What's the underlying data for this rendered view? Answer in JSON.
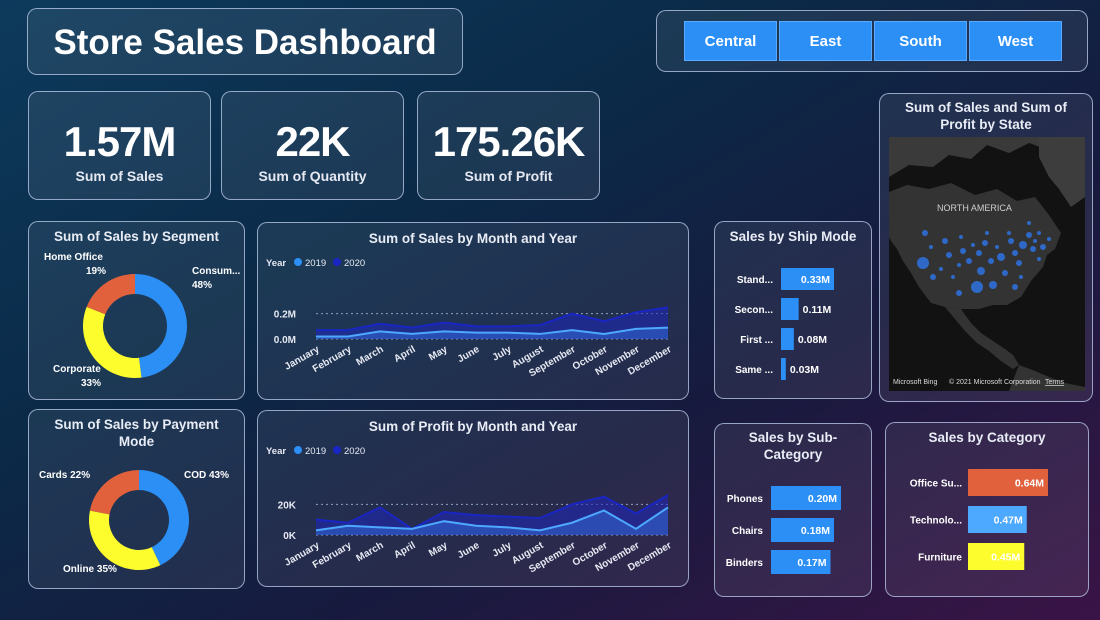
{
  "title": "Store Sales Dashboard",
  "regions": [
    "Central",
    "East",
    "South",
    "West"
  ],
  "kpis": [
    {
      "value": "1.57M",
      "label": "Sum of Sales"
    },
    {
      "value": "22K",
      "label": "Sum of Quantity"
    },
    {
      "value": "175.26K",
      "label": "Sum of Profit"
    }
  ],
  "colors": {
    "orange": "#e0613c",
    "blue": "#2b8ff5",
    "yellow": "#fdfd2e",
    "light_blue": "#4da8ff",
    "dark_blue": "#1a26c4"
  },
  "map": {
    "title": "Sum of Sales and Sum of Profit by State",
    "label": "NORTH AMERICA",
    "attribution": "Microsoft Bing",
    "copyright": "© 2021 Microsoft Corporation",
    "terms": "Terms"
  },
  "chart_data": [
    {
      "type": "pie",
      "title": "Sum of Sales by Segment",
      "categories": [
        "Consum...",
        "Corporate",
        "Home Office"
      ],
      "values": [
        48,
        33,
        19
      ],
      "labels": [
        "48%",
        "33%",
        "19%"
      ]
    },
    {
      "type": "pie",
      "title": "Sum of Sales by Payment Mode",
      "categories": [
        "COD",
        "Online",
        "Cards"
      ],
      "values": [
        43,
        35,
        22
      ],
      "labels": [
        "COD 43%",
        "Online 35%",
        "Cards 22%"
      ]
    },
    {
      "type": "area",
      "title": "Sum of Sales by Month and Year",
      "legend_title": "Year",
      "categories": [
        "January",
        "February",
        "March",
        "April",
        "May",
        "June",
        "July",
        "August",
        "September",
        "October",
        "November",
        "December"
      ],
      "series": [
        {
          "name": "2019",
          "values": [
            0.02,
            0.02,
            0.06,
            0.04,
            0.06,
            0.05,
            0.05,
            0.04,
            0.07,
            0.04,
            0.08,
            0.09
          ]
        },
        {
          "name": "2020",
          "values": [
            0.07,
            0.07,
            0.12,
            0.09,
            0.13,
            0.1,
            0.1,
            0.11,
            0.2,
            0.14,
            0.21,
            0.25
          ]
        }
      ],
      "yticks": [
        0.0,
        0.2
      ],
      "ytick_labels": [
        "0.0M",
        "0.2M"
      ],
      "ylim": [
        0,
        0.3
      ]
    },
    {
      "type": "area",
      "title": "Sum of Profit by Month and Year",
      "legend_title": "Year",
      "categories": [
        "January",
        "February",
        "March",
        "April",
        "May",
        "June",
        "July",
        "August",
        "September",
        "October",
        "November",
        "December"
      ],
      "series": [
        {
          "name": "2019",
          "values": [
            3,
            6,
            5,
            4,
            9,
            6,
            5,
            3,
            8,
            16,
            4,
            18
          ]
        },
        {
          "name": "2020",
          "values": [
            10,
            8,
            18,
            4,
            15,
            13,
            12,
            11,
            20,
            25,
            14,
            26
          ]
        }
      ],
      "yticks": [
        0,
        20
      ],
      "ytick_labels": [
        "0K",
        "20K"
      ],
      "ylim": [
        0,
        30
      ]
    },
    {
      "type": "bar",
      "title": "Sales by Ship Mode",
      "categories": [
        "Stand...",
        "Secon...",
        "First ...",
        "Same ..."
      ],
      "values": [
        0.33,
        0.11,
        0.08,
        0.03
      ],
      "labels": [
        "0.33M",
        "0.11M",
        "0.08M",
        "0.03M"
      ]
    },
    {
      "type": "bar",
      "title": "Sales by Sub-Category",
      "categories": [
        "Phones",
        "Chairs",
        "Binders"
      ],
      "values": [
        0.2,
        0.18,
        0.17
      ],
      "labels": [
        "0.20M",
        "0.18M",
        "0.17M"
      ]
    },
    {
      "type": "bar",
      "title": "Sales by Category",
      "categories": [
        "Office Su...",
        "Technolo...",
        "Furniture"
      ],
      "values": [
        0.64,
        0.47,
        0.45
      ],
      "labels": [
        "0.64M",
        "0.47M",
        "0.45M"
      ]
    }
  ]
}
